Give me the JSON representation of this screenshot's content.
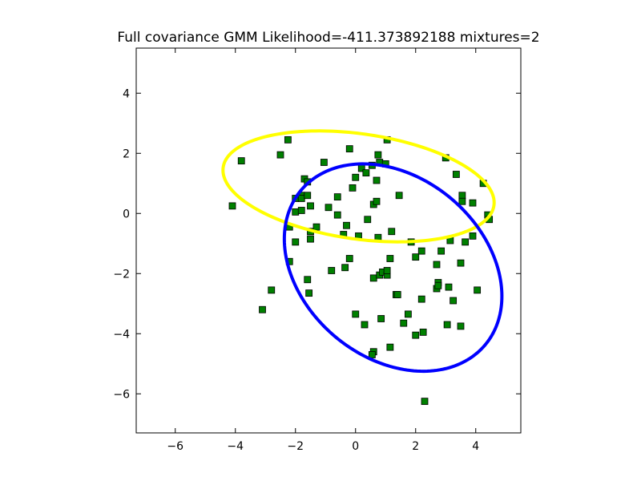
{
  "chart_data": {
    "type": "scatter",
    "title": "Full covariance GMM Likelihood=-411.373892188 mixtures=2",
    "xlabel": "",
    "ylabel": "",
    "xlim": [
      -7.3,
      5.5
    ],
    "ylim": [
      -7.3,
      5.5
    ],
    "xticks": [
      -6,
      -4,
      -2,
      0,
      2,
      4
    ],
    "yticks": [
      -6,
      -4,
      -2,
      0,
      2,
      4
    ],
    "xtick_labels": [
      "−6",
      "−4",
      "−2",
      "0",
      "2",
      "4"
    ],
    "ytick_labels": [
      "−6",
      "−4",
      "−2",
      "0",
      "2",
      "4"
    ],
    "grid": false,
    "legend": "none",
    "marker": "square",
    "marker_color": "#008000",
    "points": [
      [
        -4.1,
        0.25
      ],
      [
        -3.8,
        1.75
      ],
      [
        -3.1,
        -3.2
      ],
      [
        -2.8,
        -2.55
      ],
      [
        -2.5,
        1.95
      ],
      [
        -2.25,
        2.45
      ],
      [
        -2.2,
        -0.45
      ],
      [
        -2.2,
        -1.6
      ],
      [
        -2.0,
        0.5
      ],
      [
        -2.0,
        0.05
      ],
      [
        -2.0,
        -0.95
      ],
      [
        -1.8,
        0.6
      ],
      [
        -1.8,
        0.5
      ],
      [
        -1.8,
        0.1
      ],
      [
        -1.7,
        1.15
      ],
      [
        -1.6,
        1.05
      ],
      [
        -1.6,
        0.6
      ],
      [
        -1.6,
        -2.2
      ],
      [
        -1.55,
        -2.65
      ],
      [
        -1.5,
        0.25
      ],
      [
        -1.5,
        -0.6
      ],
      [
        -1.5,
        -0.85
      ],
      [
        -1.3,
        -0.45
      ],
      [
        -1.05,
        1.7
      ],
      [
        -0.9,
        0.2
      ],
      [
        -0.8,
        -1.9
      ],
      [
        -0.6,
        0.55
      ],
      [
        -0.6,
        -0.05
      ],
      [
        -0.4,
        -0.7
      ],
      [
        -0.35,
        -1.8
      ],
      [
        -0.3,
        -0.4
      ],
      [
        -0.2,
        2.15
      ],
      [
        -0.2,
        -1.5
      ],
      [
        -0.1,
        0.85
      ],
      [
        0.0,
        1.2
      ],
      [
        0.0,
        -3.35
      ],
      [
        0.1,
        -0.75
      ],
      [
        0.2,
        1.5
      ],
      [
        0.3,
        -3.7
      ],
      [
        0.35,
        1.35
      ],
      [
        0.4,
        -0.2
      ],
      [
        0.55,
        1.6
      ],
      [
        0.6,
        0.3
      ],
      [
        0.6,
        -2.15
      ],
      [
        0.6,
        -4.6
      ],
      [
        0.55,
        -4.7
      ],
      [
        0.7,
        1.1
      ],
      [
        0.7,
        0.4
      ],
      [
        0.75,
        -0.8
      ],
      [
        0.75,
        1.95
      ],
      [
        0.8,
        1.7
      ],
      [
        0.8,
        -2.05
      ],
      [
        0.85,
        -3.5
      ],
      [
        0.9,
        -1.95
      ],
      [
        1.0,
        1.65
      ],
      [
        1.05,
        -2.05
      ],
      [
        1.05,
        -1.9
      ],
      [
        1.05,
        2.45
      ],
      [
        1.15,
        -1.5
      ],
      [
        1.15,
        -4.45
      ],
      [
        1.2,
        -0.6
      ],
      [
        1.35,
        -2.7
      ],
      [
        1.4,
        -2.7
      ],
      [
        1.45,
        0.6
      ],
      [
        1.6,
        -3.65
      ],
      [
        1.75,
        -3.35
      ],
      [
        1.85,
        -0.95
      ],
      [
        2.0,
        -1.45
      ],
      [
        2.0,
        -4.05
      ],
      [
        2.2,
        -1.25
      ],
      [
        2.2,
        -2.85
      ],
      [
        2.25,
        -3.95
      ],
      [
        2.3,
        -6.25
      ],
      [
        2.7,
        -1.7
      ],
      [
        2.7,
        -2.5
      ],
      [
        2.75,
        -2.3
      ],
      [
        2.75,
        -2.4
      ],
      [
        2.85,
        -1.25
      ],
      [
        3.0,
        1.85
      ],
      [
        3.05,
        -3.7
      ],
      [
        3.1,
        -2.45
      ],
      [
        3.15,
        -0.9
      ],
      [
        3.25,
        -2.9
      ],
      [
        3.35,
        1.3
      ],
      [
        3.5,
        -3.75
      ],
      [
        3.5,
        -1.65
      ],
      [
        3.55,
        0.6
      ],
      [
        3.55,
        0.4
      ],
      [
        3.65,
        -0.95
      ],
      [
        3.9,
        0.35
      ],
      [
        3.9,
        -0.75
      ],
      [
        4.05,
        -2.55
      ],
      [
        4.25,
        1.0
      ],
      [
        4.4,
        -0.05
      ],
      [
        4.45,
        -0.2
      ]
    ],
    "ellipses": [
      {
        "color": "#ffff00",
        "cx": 0.1,
        "cy": 0.9,
        "rx": 4.55,
        "ry": 1.75,
        "angle_deg": -8
      },
      {
        "color": "#0000ff",
        "cx": 1.25,
        "cy": -1.8,
        "rx": 4.0,
        "ry": 3.0,
        "angle_deg": -40
      }
    ]
  }
}
